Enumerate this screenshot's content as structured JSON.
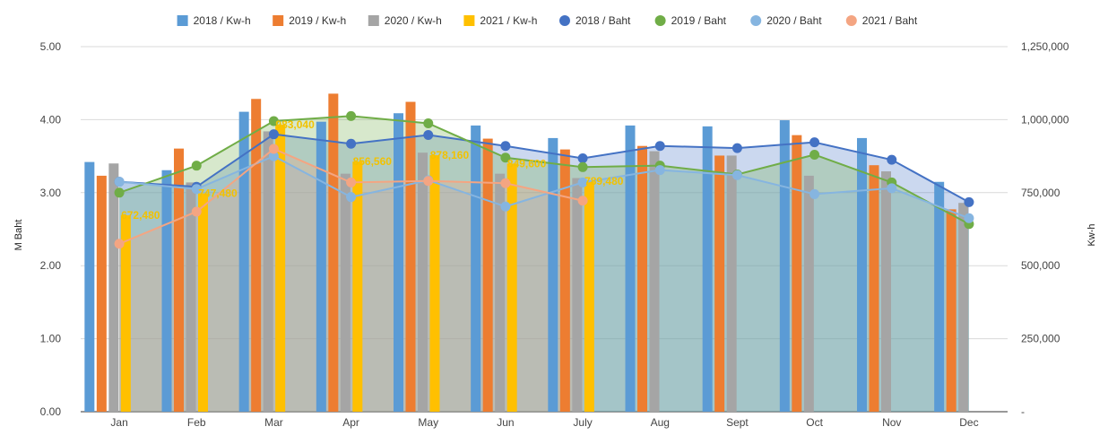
{
  "chart_data": {
    "type": "bar",
    "categories": [
      "Jan",
      "Feb",
      "Mar",
      "Apr",
      "May",
      "Jun",
      "July",
      "Aug",
      "Sept",
      "Oct",
      "Nov",
      "Dec"
    ],
    "ylabel": "M Baht",
    "ylabel_right": "Kw-h",
    "ylim_left": [
      0,
      5
    ],
    "ylim_right": [
      0,
      1250000
    ],
    "left_ticks": [
      "0.00",
      "1.00",
      "2.00",
      "3.00",
      "4.00",
      "5.00"
    ],
    "right_ticks": [
      "-",
      "250,000",
      "500,000",
      "750,000",
      "1,000,000",
      "1,250,000"
    ],
    "grid": true,
    "legend_position": "top",
    "bar_series": [
      {
        "name": "2018 / Kw-h",
        "color": "#5b9bd5",
        "values": [
          855000,
          827000,
          1027000,
          993000,
          1022000,
          980000,
          937000,
          980000,
          977000,
          998000,
          937000,
          787000
        ]
      },
      {
        "name": "2019 / Kw-h",
        "color": "#ed7d31",
        "values": [
          808000,
          901000,
          1071000,
          1089000,
          1061000,
          935000,
          898000,
          910000,
          877000,
          947000,
          844000,
          693000
        ]
      },
      {
        "name": "2020 / Kw-h",
        "color": "#a5a5a5",
        "values": [
          850000,
          785000,
          960000,
          815000,
          887000,
          815000,
          800000,
          892000,
          877000,
          808000,
          823000,
          715000
        ]
      },
      {
        "name": "2021 / Kw-h",
        "color": "#ffc000",
        "values": [
          672480,
          747480,
          983040,
          856560,
          878160,
          849600,
          789480,
          null,
          null,
          null,
          null,
          null
        ]
      }
    ],
    "line_series": [
      {
        "name": "2018 / Baht",
        "color": "#4472c4",
        "values": [
          3.15,
          3.08,
          3.8,
          3.67,
          3.79,
          3.64,
          3.47,
          3.64,
          3.61,
          3.69,
          3.45,
          2.87
        ]
      },
      {
        "name": "2019 / Baht",
        "color": "#70ad47",
        "values": [
          3.0,
          3.37,
          3.98,
          4.05,
          3.95,
          3.48,
          3.35,
          3.37,
          3.25,
          3.52,
          3.14,
          2.57
        ]
      },
      {
        "name": "2020 / Baht",
        "color": "#86b5e0",
        "values": [
          3.15,
          3.05,
          3.5,
          2.94,
          3.17,
          2.81,
          3.14,
          3.31,
          3.24,
          2.98,
          3.06,
          2.65
        ]
      },
      {
        "name": "2021 / Baht",
        "color": "#f4a582",
        "values": [
          2.3,
          2.74,
          3.6,
          3.14,
          3.16,
          3.13,
          2.89,
          null,
          null,
          null,
          null,
          null
        ]
      }
    ],
    "data_labels": [
      "672,480",
      "747,480",
      "983,040",
      "856,560",
      "878,160",
      "849,600",
      "789,480"
    ]
  }
}
